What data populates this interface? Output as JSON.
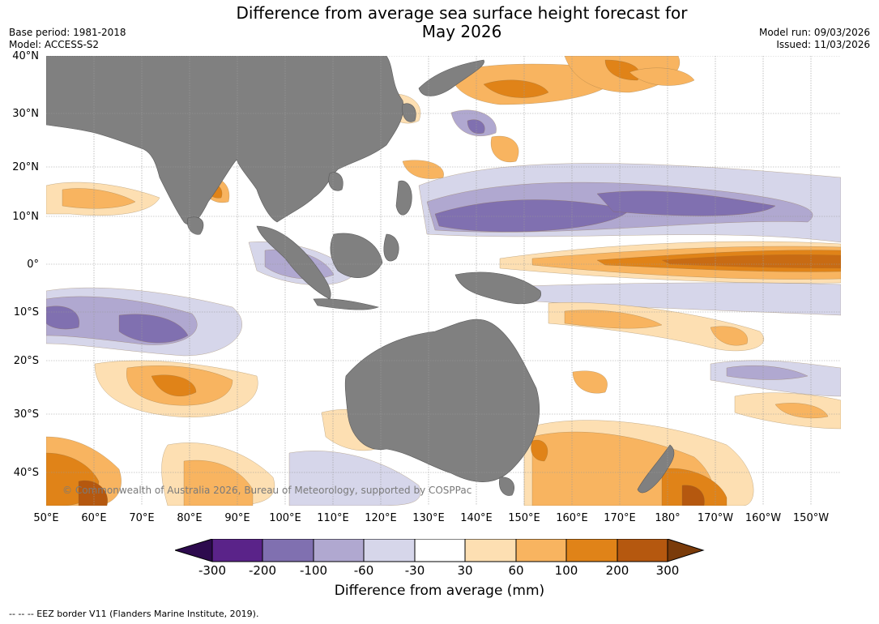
{
  "title": {
    "line1": "Difference from average sea surface height forecast for",
    "line2": "May 2026"
  },
  "meta": {
    "base_period": "Base period: 1981-2018",
    "model": "Model: ACCESS-S2",
    "model_run": "Model run: 09/03/2026",
    "issued": "Issued: 11/03/2026"
  },
  "axes": {
    "lat_labels": [
      "40°N",
      "30°N",
      "20°N",
      "10°N",
      "0°",
      "10°S",
      "20°S",
      "30°S",
      "40°S"
    ],
    "lon_labels": [
      "50°E",
      "60°E",
      "70°E",
      "80°E",
      "90°E",
      "100°E",
      "110°E",
      "120°E",
      "130°E",
      "140°E",
      "150°E",
      "160°E",
      "170°E",
      "180°",
      "170°W",
      "160°W",
      "150°W"
    ]
  },
  "copyright": "© Commonwealth of Australia 2026, Bureau of Meteorology, supported by COSPPac",
  "colorbar": {
    "ticks": [
      "-300",
      "-200",
      "-100",
      "-60",
      "-30",
      "30",
      "60",
      "100",
      "200",
      "300"
    ],
    "colors": [
      "#2d0a4e",
      "#5a2389",
      "#8070b0",
      "#b0a8d0",
      "#d6d6ea",
      "#ffffff",
      "#fddfb2",
      "#f8b460",
      "#e08318",
      "#b5580f",
      "#7a3b0a"
    ],
    "label": "Difference from average (mm)"
  },
  "legend_footer": "-- -- -- EEZ border V11 (Flanders Marine Institute, 2019).",
  "colors": {
    "land": "#808080",
    "grid": "#9a9a9a"
  }
}
